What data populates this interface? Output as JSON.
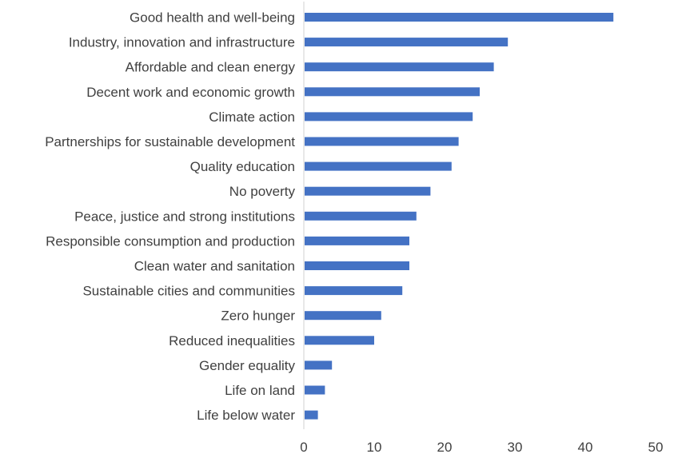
{
  "chart_data": {
    "type": "bar",
    "orientation": "horizontal",
    "categories": [
      "Good health and well-being",
      "Industry, innovation and infrastructure",
      "Affordable and clean energy",
      "Decent work and economic growth",
      "Climate action",
      "Partnerships for sustainable development",
      "Quality education",
      "No poverty",
      "Peace, justice and strong institutions",
      "Responsible consumption and production",
      "Clean water and sanitation",
      "Sustainable cities and communities",
      "Zero hunger",
      "Reduced inequalities",
      "Gender equality",
      "Life on land",
      "Life below water"
    ],
    "values": [
      44,
      29,
      27,
      25,
      24,
      22,
      21,
      18,
      16,
      15,
      15,
      14,
      11,
      10,
      4,
      3,
      2
    ],
    "xlim": [
      0,
      50
    ],
    "xticks": [
      "0",
      "10",
      "20",
      "30",
      "40",
      "50"
    ],
    "title": "",
    "xlabel": "",
    "ylabel": "",
    "grid": false,
    "bar_color": "#4472C4",
    "text_color": "#404040",
    "axis_color": "#d0d0d0"
  }
}
